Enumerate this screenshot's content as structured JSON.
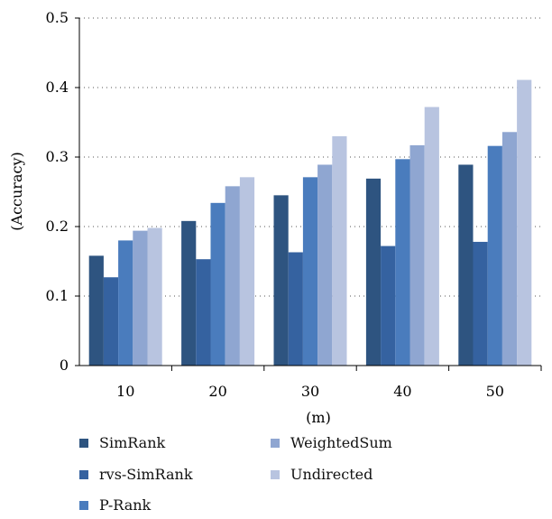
{
  "chart_data": {
    "type": "bar",
    "title": "",
    "xlabel": "(m)",
    "ylabel": "(Accuracy)",
    "categories": [
      "10",
      "20",
      "30",
      "40",
      "50"
    ],
    "ylim": [
      0,
      0.5
    ],
    "yticks": [
      "0",
      "0.1",
      "0.2",
      "0.3",
      "0.4",
      "0.5"
    ],
    "grid": "horizontal dotted",
    "legend_position": "bottom",
    "series": [
      {
        "name": "SimRank",
        "color": "#2e5480",
        "values": [
          0.158,
          0.208,
          0.245,
          0.269,
          0.289
        ]
      },
      {
        "name": "rvs-SimRank",
        "color": "#3562a0",
        "values": [
          0.127,
          0.153,
          0.163,
          0.172,
          0.178
        ]
      },
      {
        "name": "P-Rank",
        "color": "#4a7cbd",
        "values": [
          0.18,
          0.234,
          0.271,
          0.297,
          0.316
        ]
      },
      {
        "name": "WeightedSum",
        "color": "#8fa6d1",
        "values": [
          0.194,
          0.258,
          0.289,
          0.317,
          0.336
        ]
      },
      {
        "name": "Undirected",
        "color": "#b8c4e0",
        "values": [
          0.198,
          0.271,
          0.33,
          0.372,
          0.411
        ]
      }
    ]
  }
}
